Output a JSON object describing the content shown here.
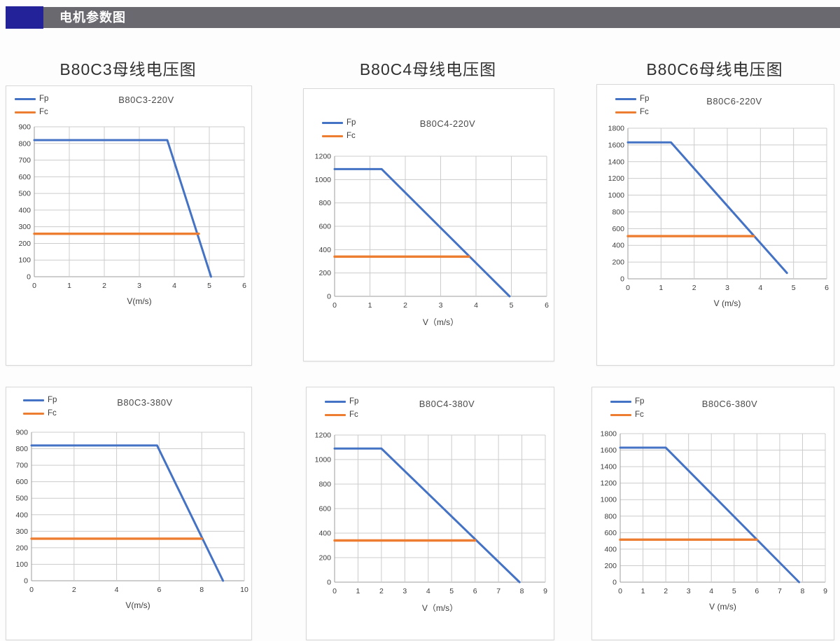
{
  "header": {
    "title": "电机参数图"
  },
  "columns": [
    {
      "title": "B80C3母线电压图"
    },
    {
      "title": "B80C4母线电压图"
    },
    {
      "title": "B80C6母线电压图"
    }
  ],
  "colors": {
    "fp": "#4472c4",
    "fc": "#ed7d31",
    "header_bar": "#69696f",
    "header_accent": "#232299",
    "grid": "#cccccc",
    "axis": "#9d9d9d"
  },
  "chart_data": [
    {
      "type": "line",
      "title": "B80C3-220V",
      "xlabel": "V(m/s)",
      "xlim": [
        0,
        6
      ],
      "xtick": 1,
      "ylim": [
        0,
        900
      ],
      "ytick": 100,
      "grid": true,
      "legend_position": "top-left",
      "legend": [
        "Fp",
        "Fc"
      ],
      "series": [
        {
          "name": "Fp",
          "color_key": "fp",
          "points": [
            [
              0,
              820
            ],
            [
              3.8,
              820
            ],
            [
              5.05,
              0
            ]
          ]
        },
        {
          "name": "Fc",
          "color_key": "fc",
          "points": [
            [
              0,
              258
            ],
            [
              4.7,
              258
            ]
          ]
        }
      ]
    },
    {
      "type": "line",
      "title": "B80C4-220V",
      "xlabel": "V（m/s）",
      "xlim": [
        0,
        6
      ],
      "xtick": 1,
      "ylim": [
        0,
        1200
      ],
      "ytick": 200,
      "grid": true,
      "legend_position": "top-left",
      "legend": [
        "Fp",
        "Fc"
      ],
      "series": [
        {
          "name": "Fp",
          "color_key": "fp",
          "points": [
            [
              0,
              1090
            ],
            [
              1.33,
              1090
            ],
            [
              4.95,
              0
            ]
          ]
        },
        {
          "name": "Fc",
          "color_key": "fc",
          "points": [
            [
              0,
              340
            ],
            [
              3.8,
              340
            ]
          ]
        }
      ]
    },
    {
      "type": "line",
      "title": "B80C6-220V",
      "xlabel": "V (m/s)",
      "xlim": [
        0,
        6
      ],
      "xtick": 1,
      "ylim": [
        0,
        1800
      ],
      "ytick": 200,
      "grid": true,
      "legend_position": "top-left",
      "legend": [
        "Fp",
        "Fc"
      ],
      "series": [
        {
          "name": "Fp",
          "color_key": "fp",
          "points": [
            [
              0,
              1630
            ],
            [
              1.3,
              1630
            ],
            [
              4.8,
              70
            ]
          ]
        },
        {
          "name": "Fc",
          "color_key": "fc",
          "points": [
            [
              0,
              510
            ],
            [
              3.8,
              510
            ]
          ]
        }
      ]
    },
    {
      "type": "line",
      "title": "B80C3-380V",
      "xlabel": "V(m/s)",
      "xlim": [
        0,
        10
      ],
      "xtick": 2,
      "ylim": [
        0,
        900
      ],
      "ytick": 100,
      "grid": true,
      "legend_position": "top-left",
      "legend": [
        "Fp",
        "Fc"
      ],
      "series": [
        {
          "name": "Fp",
          "color_key": "fp",
          "points": [
            [
              0,
              820
            ],
            [
              5.9,
              820
            ],
            [
              9.0,
              0
            ]
          ]
        },
        {
          "name": "Fc",
          "color_key": "fc",
          "points": [
            [
              0,
              255
            ],
            [
              8.0,
              255
            ]
          ]
        }
      ]
    },
    {
      "type": "line",
      "title": "B80C4-380V",
      "xlabel": "V（m/s）",
      "xlim": [
        0,
        9
      ],
      "xtick": 1,
      "ylim": [
        0,
        1200
      ],
      "ytick": 200,
      "grid": true,
      "legend_position": "top-left",
      "legend": [
        "Fp",
        "Fc"
      ],
      "series": [
        {
          "name": "Fp",
          "color_key": "fp",
          "points": [
            [
              0,
              1090
            ],
            [
              2.0,
              1090
            ],
            [
              7.9,
              0
            ]
          ]
        },
        {
          "name": "Fc",
          "color_key": "fc",
          "points": [
            [
              0,
              340
            ],
            [
              6.0,
              340
            ]
          ]
        }
      ]
    },
    {
      "type": "line",
      "title": "B80C6-380V",
      "xlabel": "V (m/s)",
      "xlim": [
        0,
        9
      ],
      "xtick": 1,
      "ylim": [
        0,
        1800
      ],
      "ytick": 200,
      "grid": true,
      "legend_position": "top-left",
      "legend": [
        "Fp",
        "Fc"
      ],
      "series": [
        {
          "name": "Fp",
          "color_key": "fp",
          "points": [
            [
              0,
              1630
            ],
            [
              2.0,
              1630
            ],
            [
              7.85,
              0
            ]
          ]
        },
        {
          "name": "Fc",
          "color_key": "fc",
          "points": [
            [
              0,
              515
            ],
            [
              6.0,
              515
            ]
          ]
        }
      ]
    }
  ]
}
